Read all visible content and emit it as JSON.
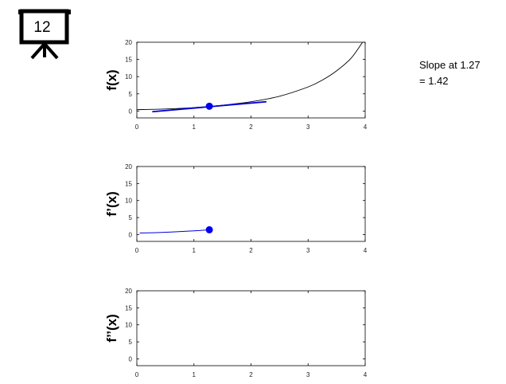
{
  "badge": {
    "label": "12",
    "icon": "presentation-board-icon"
  },
  "annotation": {
    "line1": "Slope at 1.27",
    "line2": "= 1.42"
  },
  "colors": {
    "curve": "#000000",
    "tangent": "#0000dd",
    "marker": "#0000ee",
    "axes": "#000000"
  },
  "chart_data": [
    {
      "type": "line",
      "title": "",
      "xlabel": "",
      "ylabel": "f(x)",
      "xlim": [
        0,
        4
      ],
      "ylim": [
        -2,
        20
      ],
      "xticks": [
        "0",
        "1",
        "2",
        "3",
        "4"
      ],
      "yticks": [
        "0",
        "5",
        "10",
        "15",
        "20"
      ],
      "grid": false,
      "series": [
        {
          "role": "curve",
          "x": [
            0,
            0.5,
            1,
            1.5,
            2,
            2.5,
            3,
            3.25,
            3.5,
            3.75,
            3.95
          ],
          "y": [
            0.4,
            0.6,
            1.0,
            1.7,
            2.7,
            4.3,
            7.0,
            9.0,
            11.7,
            15.3,
            19.9
          ]
        },
        {
          "role": "tangent",
          "x": [
            0.27,
            2.27
          ],
          "y": [
            -0.2,
            2.7
          ]
        },
        {
          "role": "point",
          "x": [
            1.27
          ],
          "y": [
            1.4
          ]
        }
      ]
    },
    {
      "type": "line",
      "title": "",
      "xlabel": "",
      "ylabel": "f’(x)",
      "xlim": [
        0,
        4
      ],
      "ylim": [
        -2,
        20
      ],
      "xticks": [
        "0",
        "1",
        "2",
        "3",
        "4"
      ],
      "yticks": [
        "0",
        "5",
        "10",
        "15",
        "20"
      ],
      "grid": false,
      "series": [
        {
          "role": "derivative",
          "x": [
            0.05,
            0.3,
            0.6,
            0.9,
            1.1,
            1.27
          ],
          "y": [
            0.45,
            0.55,
            0.75,
            1.0,
            1.2,
            1.42
          ]
        },
        {
          "role": "point",
          "x": [
            1.27
          ],
          "y": [
            1.42
          ]
        }
      ]
    },
    {
      "type": "line",
      "title": "",
      "xlabel": "",
      "ylabel": "f’’(x)",
      "xlim": [
        0,
        4
      ],
      "ylim": [
        -2,
        20
      ],
      "xticks": [
        "0",
        "1",
        "2",
        "3",
        "4"
      ],
      "yticks": [
        "0",
        "5",
        "10",
        "15",
        "20"
      ],
      "grid": false,
      "series": []
    }
  ]
}
